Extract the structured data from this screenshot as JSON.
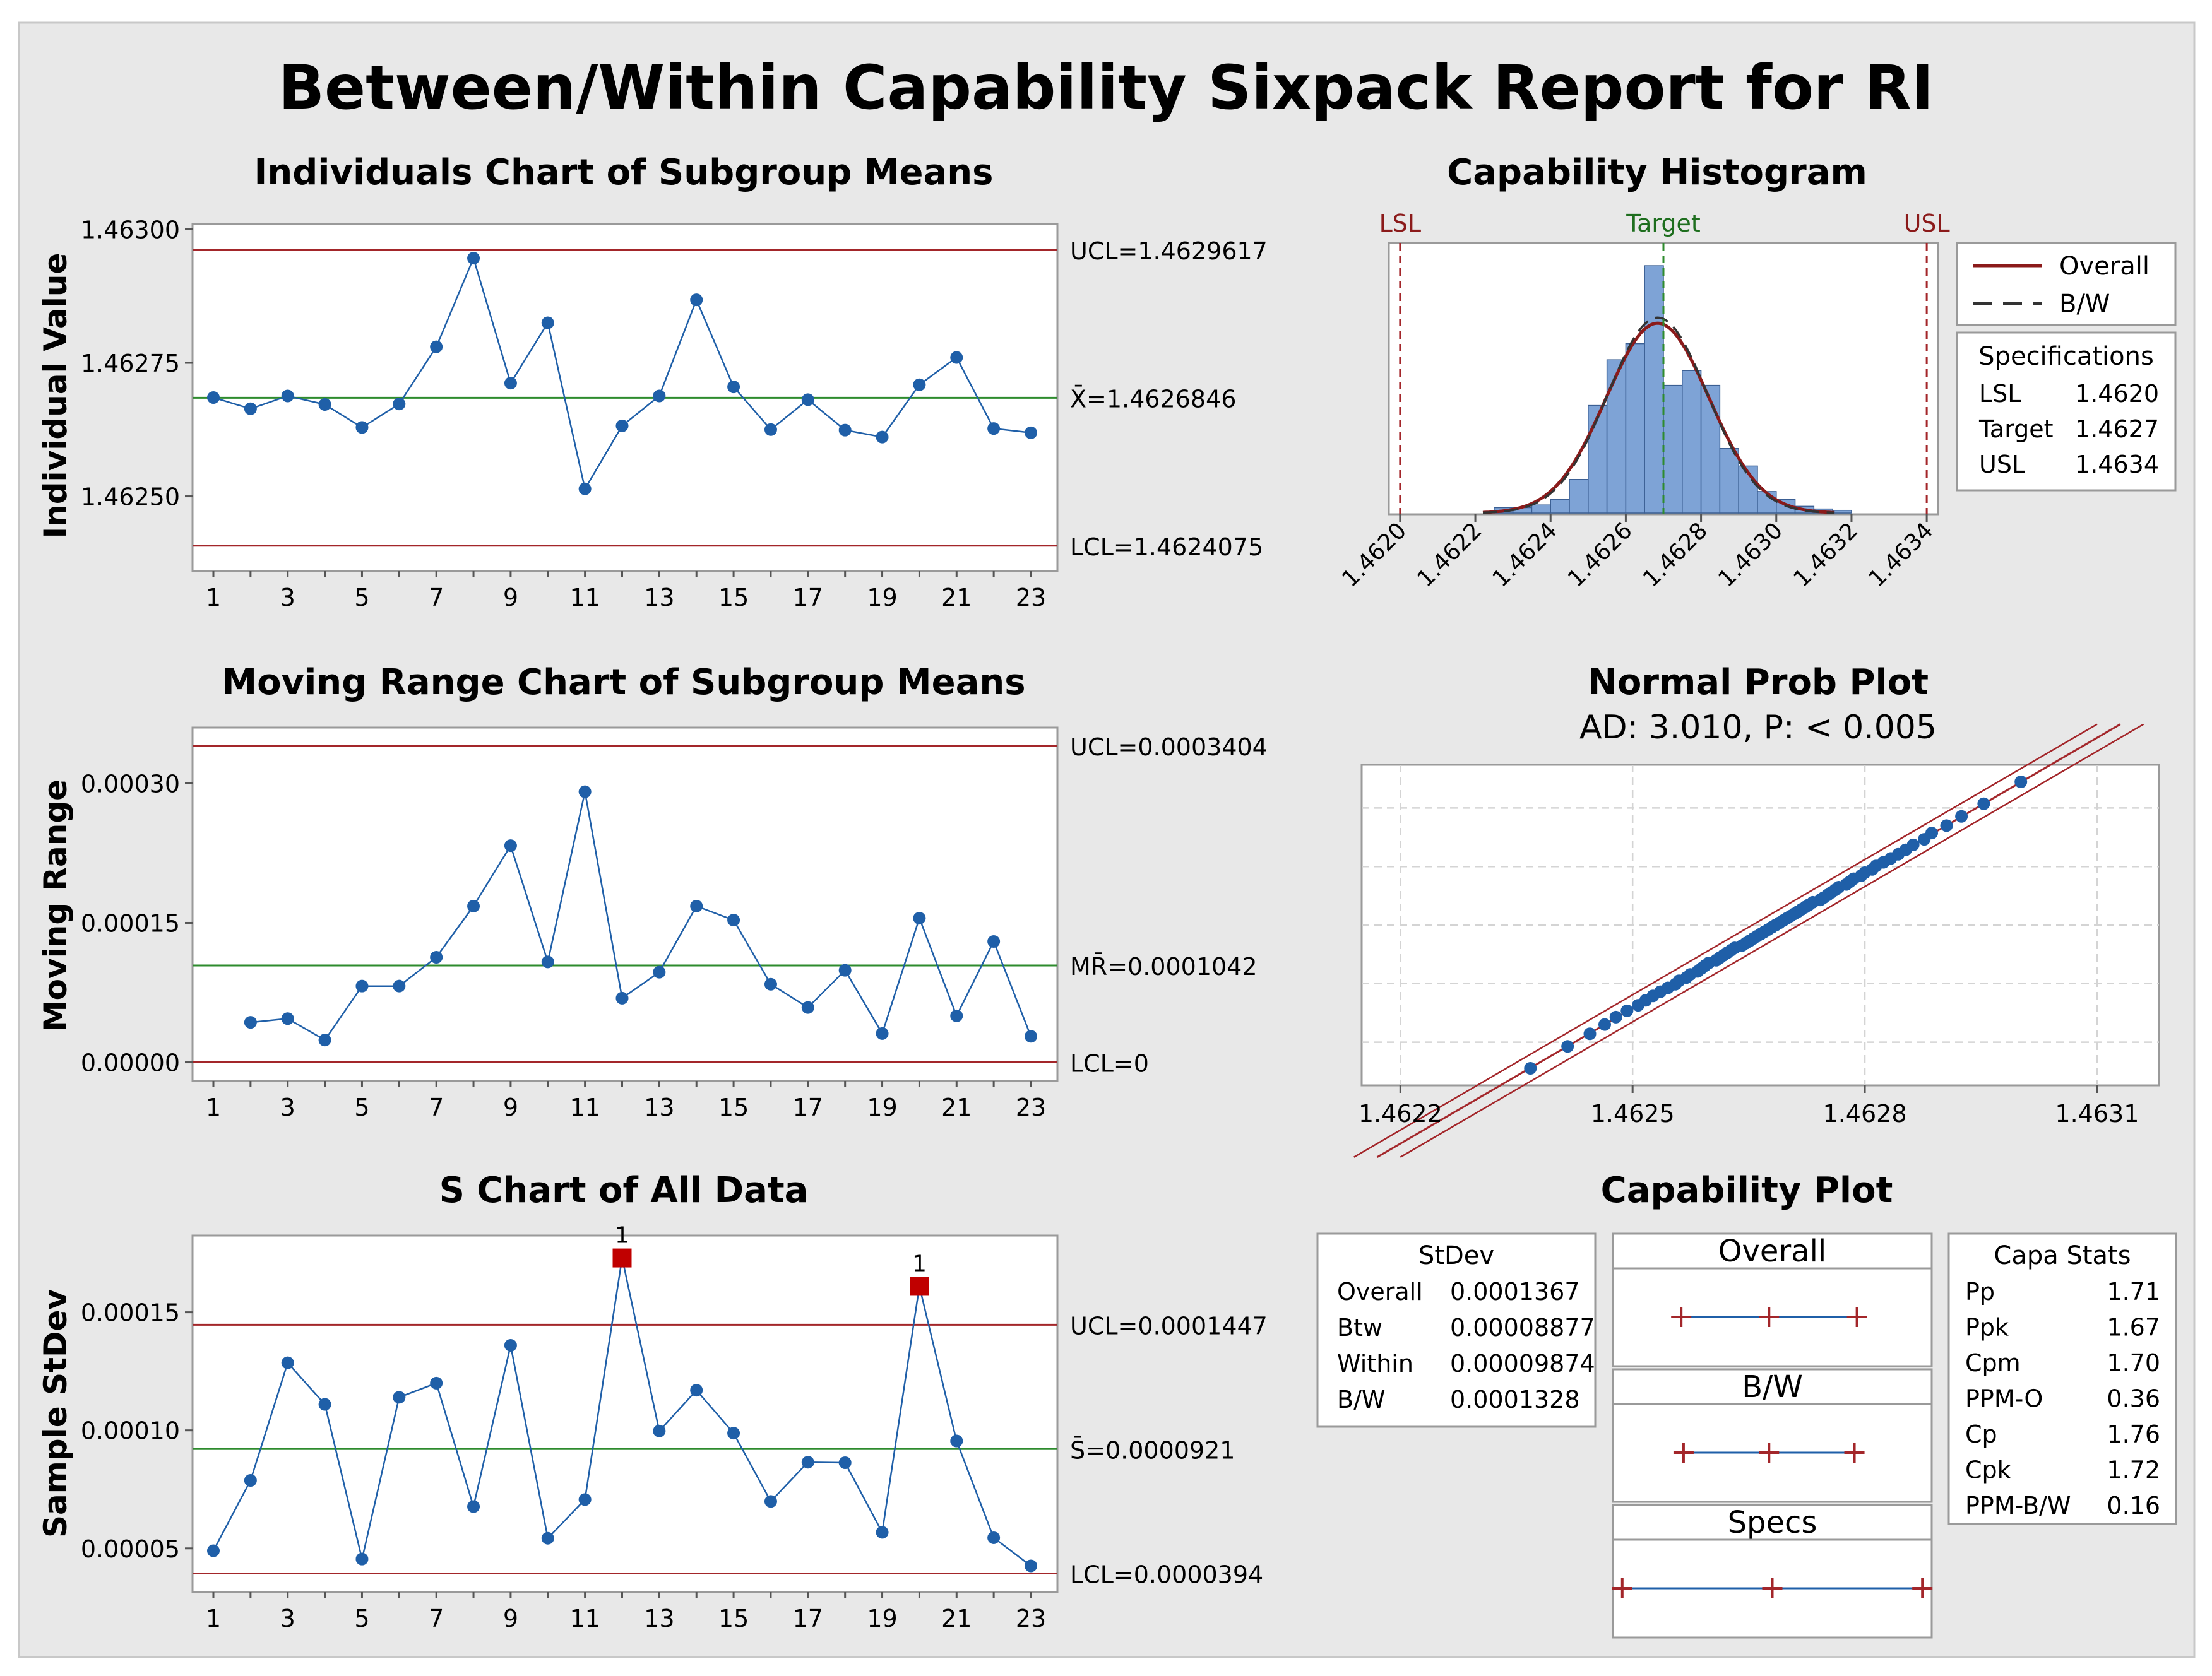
{
  "report_title": "Between/Within Capability Sixpack Report for RI",
  "colors": {
    "background": "#e8e8e8",
    "plot_bg": "#ffffff",
    "series": "#1f5fa8",
    "limit": "#a3262a",
    "center": "#2e8b2e",
    "flag": "#c00000",
    "hist_bar": "#7ea3d6"
  },
  "chart_data": [
    {
      "type": "line",
      "title": "Individuals Chart of Subgroup Means",
      "ylabel": "Individual Value",
      "x": [
        1,
        2,
        3,
        4,
        5,
        6,
        7,
        8,
        9,
        10,
        11,
        12,
        13,
        14,
        15,
        16,
        17,
        18,
        19,
        20,
        21,
        22,
        23
      ],
      "x_ticks": [
        "1",
        "3",
        "5",
        "7",
        "9",
        "11",
        "13",
        "15",
        "17",
        "19",
        "21",
        "23"
      ],
      "values": [
        1.462685,
        1.462664,
        1.462688,
        1.462672,
        1.462629,
        1.462673,
        1.46278,
        1.462946,
        1.462712,
        1.462825,
        1.462514,
        1.462632,
        1.462688,
        1.462868,
        1.462705,
        1.462625,
        1.462681,
        1.462624,
        1.462611,
        1.462709,
        1.46276,
        1.462627,
        1.462619
      ],
      "ylim": [
        1.46236,
        1.46301
      ],
      "y_ticks": [
        "1.46300",
        "1.46275",
        "1.46250"
      ],
      "y_tick_values": [
        1.463,
        1.46275,
        1.4625
      ],
      "limits": [
        {
          "label": "UCL=1.4629617",
          "value": 1.4629617,
          "kind": "limit"
        },
        {
          "label": "X̄=1.4626846",
          "value": 1.4626846,
          "kind": "center"
        },
        {
          "label": "LCL=1.4624075",
          "value": 1.4624075,
          "kind": "limit"
        }
      ]
    },
    {
      "type": "line",
      "title": "Moving Range Chart of Subgroup Means",
      "ylabel": "Moving Range",
      "x": [
        2,
        3,
        4,
        5,
        6,
        7,
        8,
        9,
        10,
        11,
        12,
        13,
        14,
        15,
        16,
        17,
        18,
        19,
        20,
        21,
        22,
        23
      ],
      "x_ticks": [
        "1",
        "3",
        "5",
        "7",
        "9",
        "11",
        "13",
        "15",
        "17",
        "19",
        "21",
        "23"
      ],
      "values": [
        4.3e-05,
        4.7e-05,
        2.4e-05,
        8.2e-05,
        8.2e-05,
        0.000113,
        0.000168,
        0.000233,
        0.000108,
        0.000291,
        6.9e-05,
        9.7e-05,
        0.000168,
        0.000153,
        8.4e-05,
        5.9e-05,
        9.9e-05,
        3.1e-05,
        0.000155,
        5e-05,
        0.00013,
        2.8e-05
      ],
      "ylim": [
        -2e-05,
        0.00036
      ],
      "y_ticks": [
        "0.00030",
        "0.00015",
        "0.00000"
      ],
      "y_tick_values": [
        0.0003,
        0.00015,
        0.0
      ],
      "limits": [
        {
          "label": "UCL=0.0003404",
          "value": 0.0003404,
          "kind": "limit"
        },
        {
          "label": "MR̄=0.0001042",
          "value": 0.0001042,
          "kind": "center"
        },
        {
          "label": "LCL=0",
          "value": 0,
          "kind": "limit"
        }
      ]
    },
    {
      "type": "line",
      "title": "S Chart of All Data",
      "ylabel": "Sample StDev",
      "x": [
        1,
        2,
        3,
        4,
        5,
        6,
        7,
        8,
        9,
        10,
        11,
        12,
        13,
        14,
        15,
        16,
        17,
        18,
        19,
        20,
        21,
        22,
        23
      ],
      "x_ticks": [
        "1",
        "3",
        "5",
        "7",
        "9",
        "11",
        "13",
        "15",
        "17",
        "19",
        "21",
        "23"
      ],
      "values": [
        4.9e-05,
        7.88e-05,
        0.0001286,
        0.000111,
        4.55e-05,
        0.000114,
        0.00012,
        6.77e-05,
        0.000136,
        5.43e-05,
        7.07e-05,
        0.000173,
        9.97e-05,
        0.000117,
        9.88e-05,
        6.99e-05,
        8.65e-05,
        8.63e-05,
        5.68e-05,
        0.000161,
        9.55e-05,
        5.45e-05,
        4.26e-05
      ],
      "flagged": [
        12,
        20
      ],
      "flag_label": "1",
      "ylim": [
        3.15e-05,
        0.0001825
      ],
      "y_ticks": [
        "0.00015",
        "0.00010",
        "0.00005"
      ],
      "y_tick_values": [
        0.00015,
        0.0001,
        5e-05
      ],
      "limits": [
        {
          "label": "UCL=0.0001447",
          "value": 0.0001447,
          "kind": "limit"
        },
        {
          "label": "S̄=0.0000921",
          "value": 9.21e-05,
          "kind": "center"
        },
        {
          "label": "LCL=0.0000394",
          "value": 3.94e-05,
          "kind": "limit"
        }
      ]
    },
    {
      "type": "bar",
      "title": "Capability Histogram",
      "bin_edges": [
        1.46225,
        1.4623,
        1.46235,
        1.4624,
        1.46245,
        1.4625,
        1.46255,
        1.4626,
        1.46265,
        1.4627,
        1.46275,
        1.4628,
        1.46285,
        1.4629,
        1.46295,
        1.463,
        1.46305,
        1.4631,
        1.46315,
        1.4632
      ],
      "counts": [
        0.4,
        0.4,
        0.6,
        1.0,
        2.5,
        8.0,
        11.4,
        12.6,
        18.4,
        9.5,
        10.6,
        9.5,
        4.8,
        3.5,
        1.6,
        1.0,
        0.5,
        0.3,
        0.2
      ],
      "xlim": [
        1.46197,
        1.46343
      ],
      "x_ticks": [
        "1.4620",
        "1.4622",
        "1.4624",
        "1.4626",
        "1.4628",
        "1.4630",
        "1.4632",
        "1.4634"
      ],
      "x_tick_values": [
        1.462,
        1.4622,
        1.4624,
        1.4626,
        1.4628,
        1.463,
        1.4632,
        1.4634
      ],
      "spec_lines": [
        {
          "label": "LSL",
          "value": 1.462
        },
        {
          "label": "Target",
          "value": 1.4627
        },
        {
          "label": "USL",
          "value": 1.4634
        }
      ],
      "curves": [
        {
          "name": "Overall",
          "mean": 1.4626846,
          "sd": 0.0001367
        },
        {
          "name": "B/W",
          "mean": 1.4626846,
          "sd": 0.0001328
        }
      ],
      "legend": [
        "Overall",
        "B/W"
      ],
      "specs_table": {
        "title": "Specifications",
        "rows": [
          [
            "LSL",
            "1.4620"
          ],
          [
            "Target",
            "1.4627"
          ],
          [
            "USL",
            "1.4634"
          ]
        ]
      }
    },
    {
      "type": "scatter",
      "title": "Normal Prob Plot",
      "subtitle": "AD: 3.010, P: < 0.005",
      "xlim": [
        1.46215,
        1.46318
      ],
      "x_ticks": [
        "1.4622",
        "1.4625",
        "1.4628",
        "1.4631"
      ],
      "x_tick_values": [
        1.4622,
        1.4625,
        1.4628,
        1.4631
      ],
      "mean": 1.4626846,
      "sd": 0.0001367,
      "n": 69
    },
    {
      "type": "table",
      "title": "Capability Plot",
      "stdev_table": {
        "title": "StDev",
        "rows": [
          [
            "Overall",
            "0.0001367"
          ],
          [
            "Btw",
            "0.00008877"
          ],
          [
            "Within",
            "0.00009874"
          ],
          [
            "B/W",
            "0.0001328"
          ]
        ]
      },
      "intervals": [
        {
          "label": "Overall",
          "low": 1.462275,
          "mid": 1.4626846,
          "high": 1.463095
        },
        {
          "label": "B/W",
          "low": 1.462286,
          "mid": 1.4626846,
          "high": 1.463083
        },
        {
          "label": "Specs",
          "low": 1.462,
          "mid": 1.4627,
          "high": 1.4634
        }
      ],
      "interval_xlim": [
        1.46198,
        1.46342
      ],
      "capa_stats": {
        "title": "Capa Stats",
        "rows": [
          [
            "Pp",
            "1.71"
          ],
          [
            "Ppk",
            "1.67"
          ],
          [
            "Cpm",
            "1.70"
          ],
          [
            "PPM-O",
            "0.36"
          ],
          [
            "Cp",
            "1.76"
          ],
          [
            "Cpk",
            "1.72"
          ],
          [
            "PPM-B/W",
            "0.16"
          ]
        ]
      }
    }
  ]
}
